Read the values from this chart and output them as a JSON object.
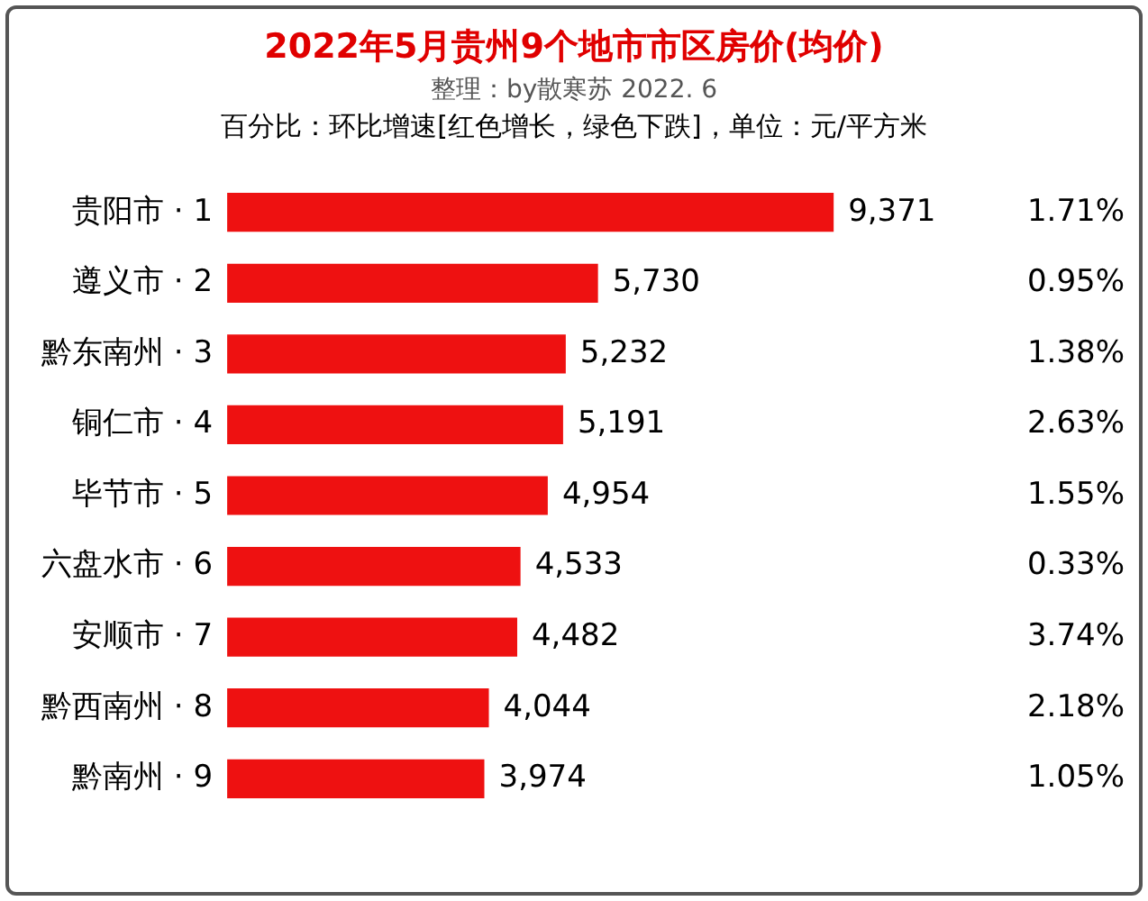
{
  "chart_data": {
    "type": "bar",
    "orientation": "horizontal",
    "title": "2022年5月贵州9个地市市区房价(均价)",
    "subtitle": "整理：by散寒苏  2022. 6",
    "categories": [
      "贵阳市 · 1",
      "遵义市 · 2",
      "黔东南州 · 3",
      "铜仁市 · 4",
      "毕节市 · 5",
      "六盘水市 · 6",
      "安顺市 · 7",
      "黔西南州 · 8",
      "黔南州 · 9"
    ],
    "color": "#ee1111",
    "values": [
      9371,
      5730,
      5232,
      5191,
      4954,
      4533,
      4482,
      4044,
      3974
    ],
    "value_labels": [
      "9,371",
      "5,730",
      "5,232",
      "5,191",
      "4,954",
      "4,533",
      "4,482",
      "4,044",
      "3,974"
    ],
    "grid": false,
    "annotations": [
      "百分比：环比增速[红色增长，绿色下跌]，单位：元/平方米",
      "1.71%",
      "0.95%",
      "1.38%",
      "2.63%",
      "1.55%",
      "0.33%",
      "3.74%",
      "2.18%",
      "1.05%"
    ]
  }
}
